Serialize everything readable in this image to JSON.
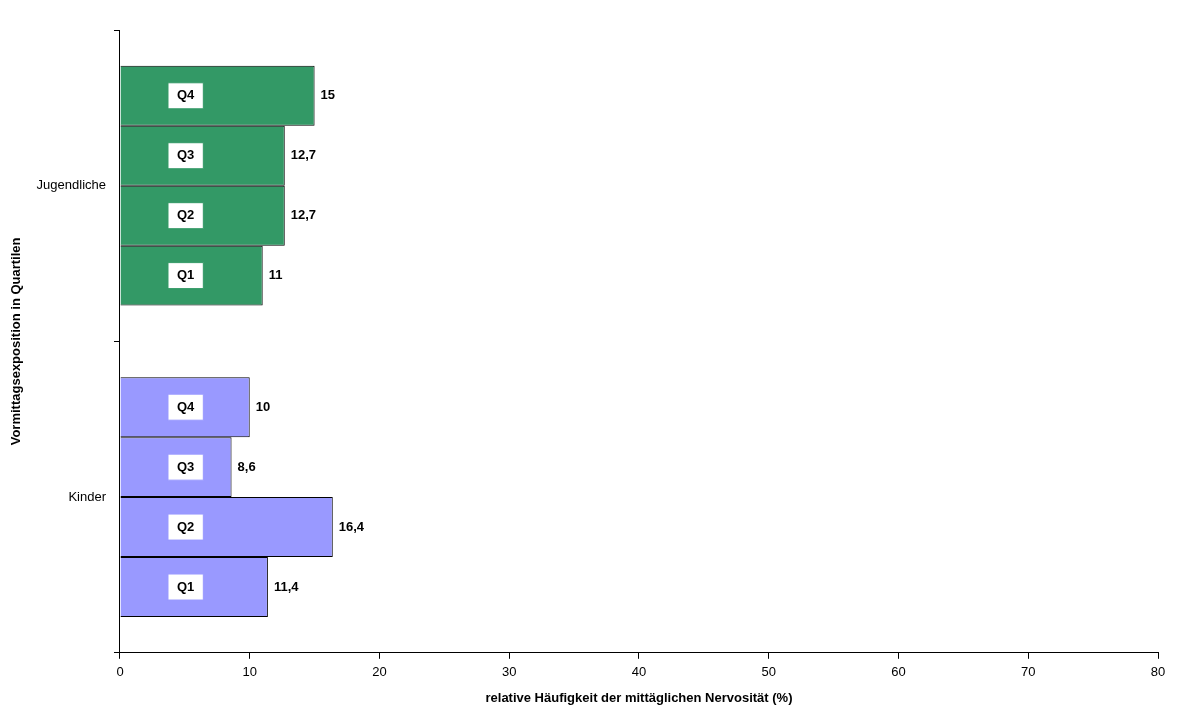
{
  "chart_data": {
    "type": "bar",
    "orientation": "horizontal",
    "xlabel": "relative Häufigkeit der mittäglichen Nervosität (%)",
    "ylabel": "Vormittagsexposition in Quartilen",
    "categories": [
      "Jugendliche",
      "Kinder"
    ],
    "series": [
      {
        "name": "Q4",
        "colors": [
          "#339966",
          "#9999ff"
        ],
        "values": [
          15,
          10
        ],
        "value_labels": [
          "15",
          "10"
        ]
      },
      {
        "name": "Q3",
        "colors": [
          "#339966",
          "#9999ff"
        ],
        "values": [
          12.7,
          8.6
        ],
        "value_labels": [
          "12,7",
          "8,6"
        ]
      },
      {
        "name": "Q2",
        "colors": [
          "#339966",
          "#9999ff"
        ],
        "values": [
          12.7,
          16.4
        ],
        "value_labels": [
          "12,7",
          "16,4"
        ]
      },
      {
        "name": "Q1",
        "colors": [
          "#339966",
          "#9999ff"
        ],
        "values": [
          11,
          11.4
        ],
        "value_labels": [
          "11",
          "11,4"
        ]
      }
    ],
    "xlim": [
      0,
      80
    ],
    "xticks": [
      0,
      10,
      20,
      30,
      40,
      50,
      60,
      70,
      80
    ],
    "grid": false,
    "legend": false
  }
}
